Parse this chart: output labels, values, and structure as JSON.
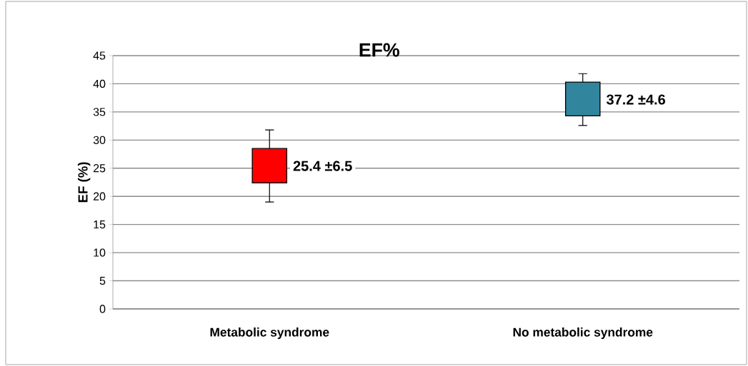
{
  "chart_data": {
    "type": "candlestick",
    "title": "EF%",
    "ylabel": "EF (%)",
    "categories": [
      "Metabolic syndrome",
      "No metabolic syndrome"
    ],
    "ohlc": [
      [
        22.4,
        31.8,
        19.0,
        28.5
      ],
      [
        34.3,
        41.8,
        32.6,
        40.3
      ]
    ],
    "colors": [
      "#ff0000",
      "#31859c"
    ],
    "ylim": [
      0,
      45
    ],
    "yticks": [
      0,
      5,
      10,
      15,
      20,
      25,
      30,
      35,
      40,
      45
    ],
    "grid": "y",
    "annotations": [
      {
        "text": "25.4 ±6.5",
        "x": "Metabolic syndrome",
        "y": 25.4
      },
      {
        "text": "37.2 ±4.6",
        "x": "No metabolic syndrome",
        "y": 37.2
      }
    ]
  }
}
